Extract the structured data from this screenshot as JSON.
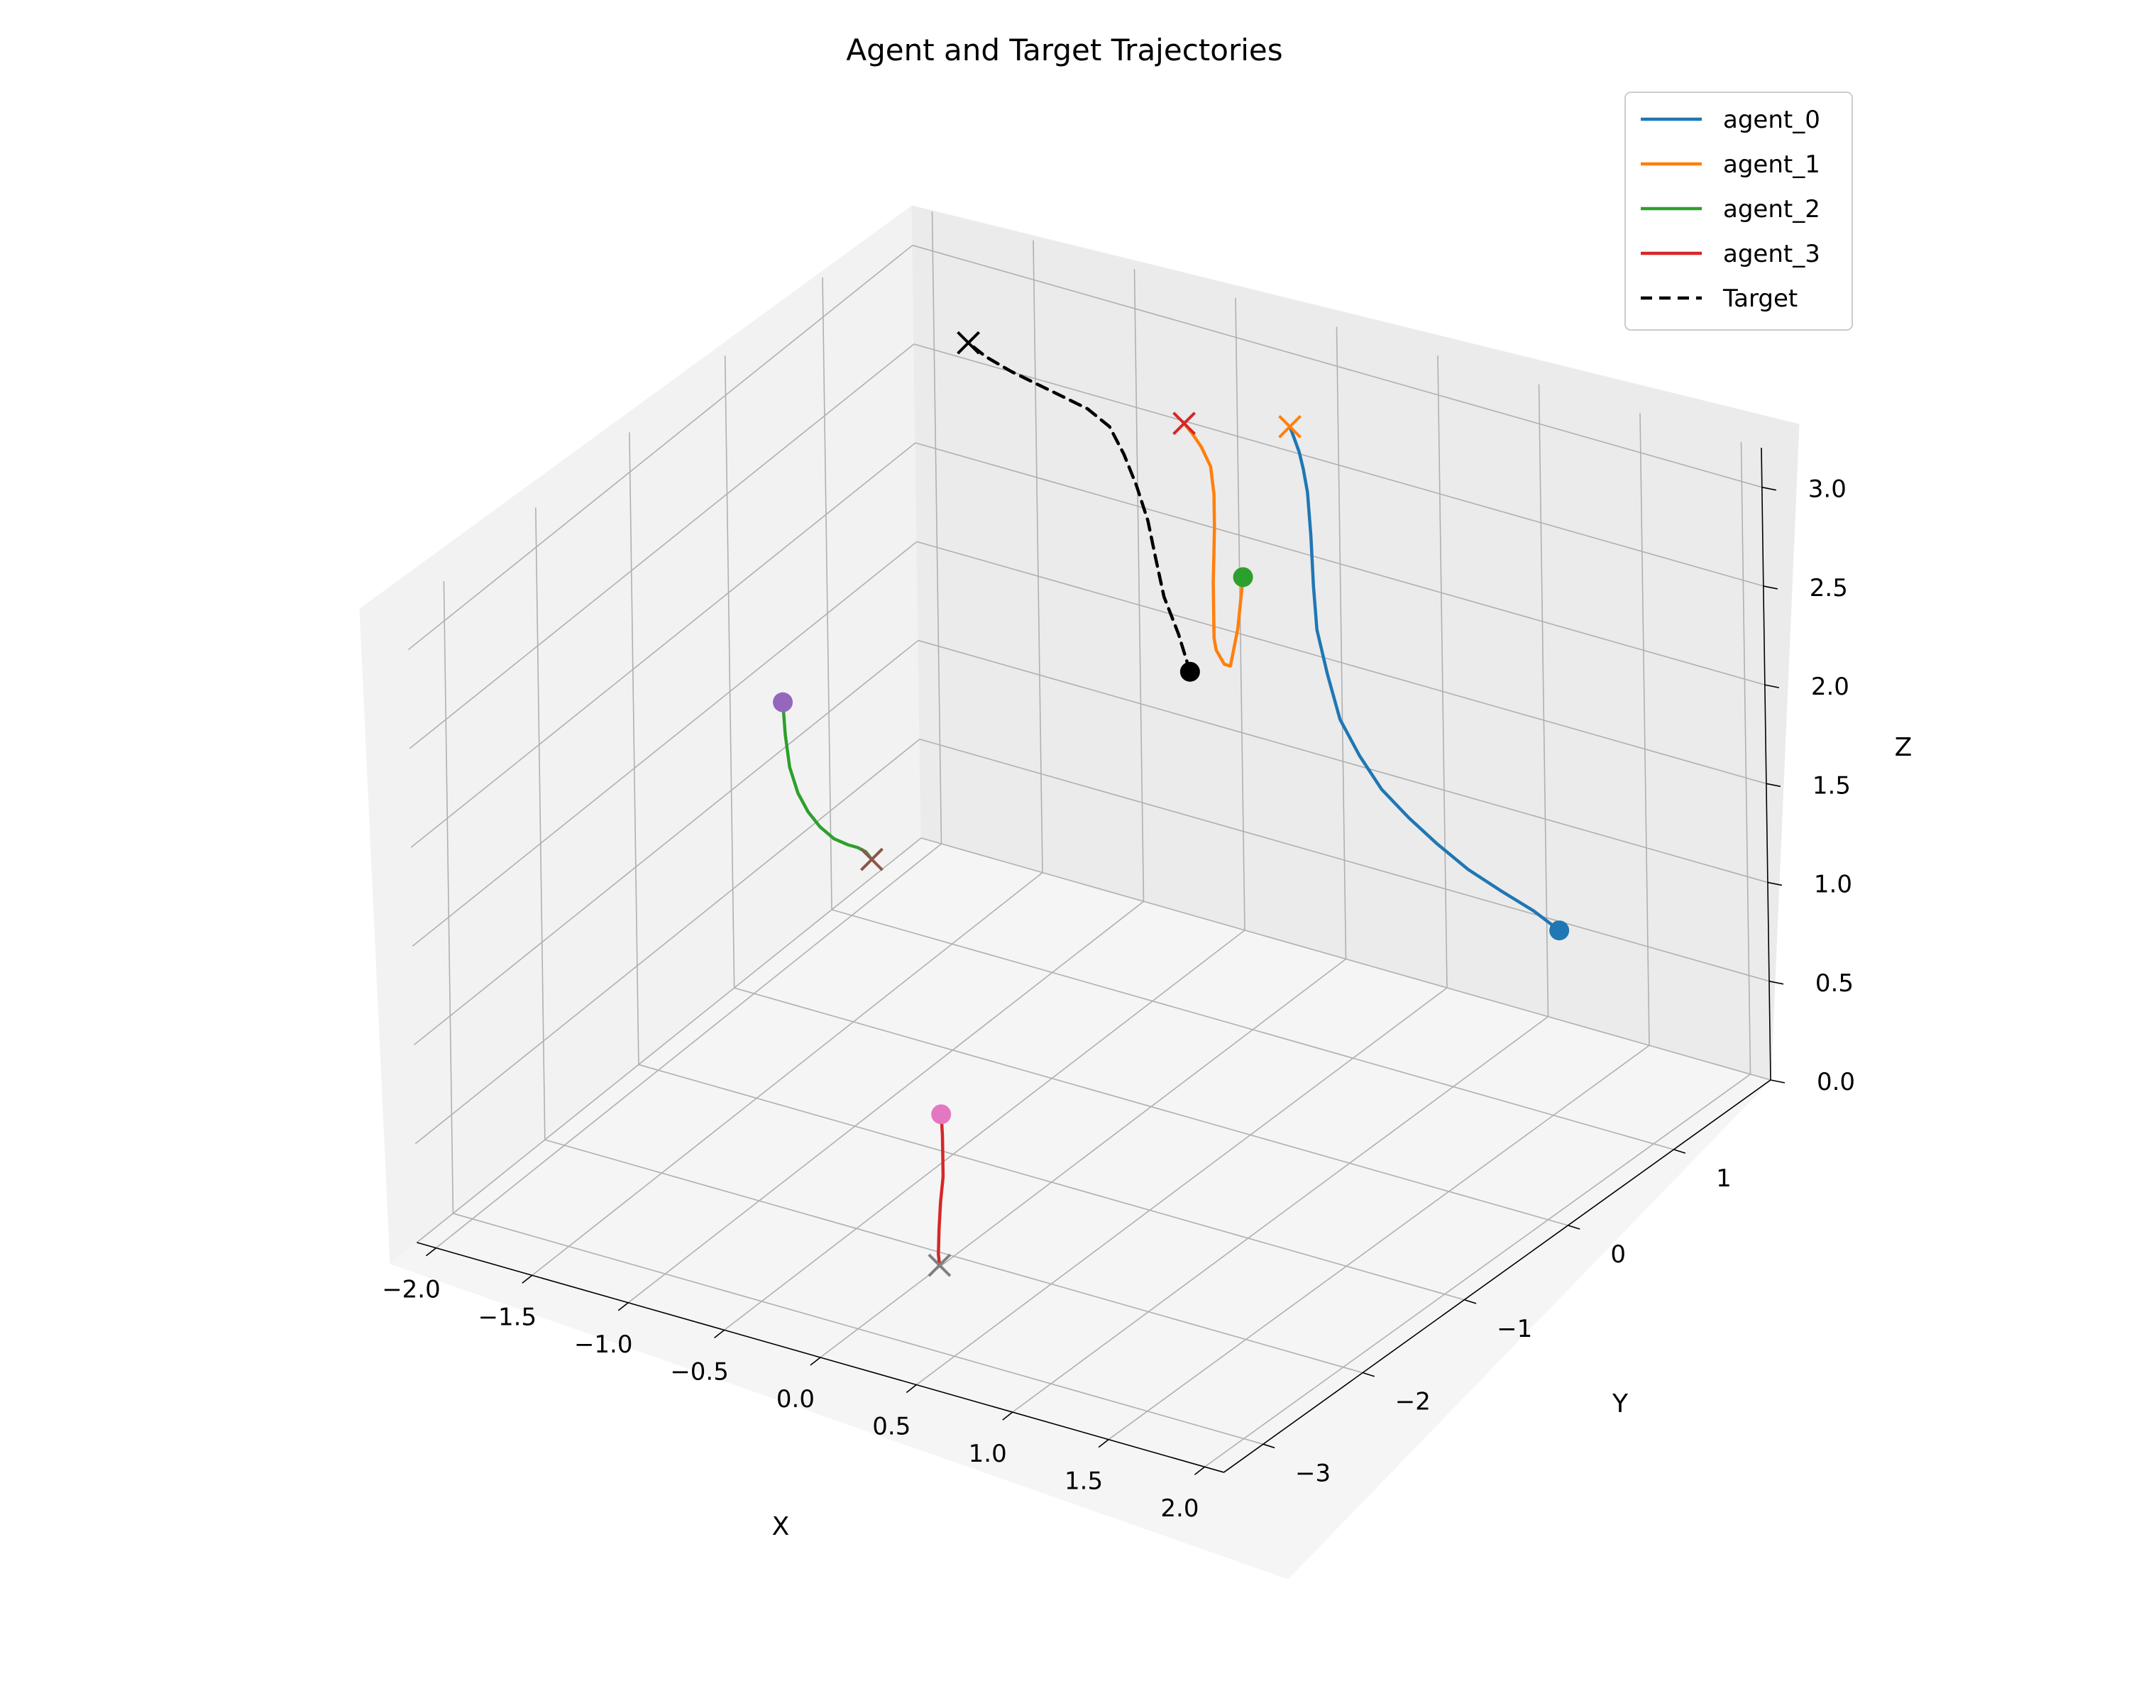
{
  "chart_data": {
    "type": "line",
    "title": "Agent and Target Trajectories",
    "xlabel": "X",
    "ylabel": "Y",
    "zlabel": "Z",
    "xlim": [
      -2.1,
      2.1
    ],
    "ylim": [
      -3.4,
      1.9
    ],
    "zlim": [
      0,
      3.2
    ],
    "xticks": [
      -2.0,
      -1.5,
      -1.0,
      -0.5,
      0.0,
      0.5,
      1.0,
      1.5,
      2.0
    ],
    "yticks": [
      -3,
      -2,
      -1,
      0,
      1
    ],
    "zticks": [
      0.0,
      0.5,
      1.0,
      1.5,
      2.0,
      2.5,
      3.0
    ],
    "xtick_labels": [
      "−2.0",
      "−1.5",
      "−1.0",
      "−0.5",
      "0.0",
      "0.5",
      "1.0",
      "1.5",
      "2.0"
    ],
    "ytick_labels": [
      "−3",
      "−2",
      "−1",
      "0",
      "1"
    ],
    "ztick_labels": [
      "0.0",
      "0.5",
      "1.0",
      "1.5",
      "2.0",
      "2.5",
      "3.0"
    ],
    "legend_position": "top-right",
    "grid": true,
    "series": [
      {
        "name": "agent_0",
        "color": "#1f77b4",
        "style": "solid",
        "start_marker_color": "#1f77b4",
        "end_marker_color": "#ff7f0e",
        "points": [
          [
            1.76,
            0.59,
            1.17
          ],
          [
            1.6,
            0.65,
            1.2
          ],
          [
            1.43,
            0.66,
            1.25
          ],
          [
            1.27,
            0.66,
            1.31
          ],
          [
            1.11,
            0.67,
            1.39
          ],
          [
            0.96,
            0.69,
            1.47
          ],
          [
            0.82,
            0.7,
            1.57
          ],
          [
            0.7,
            0.72,
            1.7
          ],
          [
            0.6,
            0.73,
            1.85
          ],
          [
            0.53,
            0.75,
            2.05
          ],
          [
            0.47,
            0.77,
            2.25
          ],
          [
            0.44,
            0.8,
            2.45
          ],
          [
            0.41,
            0.84,
            2.68
          ],
          [
            0.37,
            0.89,
            2.87
          ],
          [
            0.33,
            0.93,
            2.96
          ],
          [
            0.3,
            0.95,
            3.03
          ],
          [
            0.27,
            0.96,
            3.09
          ],
          [
            0.25,
            0.96,
            3.14
          ]
        ]
      },
      {
        "name": "agent_1",
        "color": "#ff7f0e",
        "style": "solid",
        "start_marker_color": "#2ca02c",
        "end_marker_color": "#d62728",
        "points": [
          [
            0.16,
            0.66,
            2.47
          ],
          [
            0.13,
            0.66,
            2.2
          ],
          [
            0.09,
            0.66,
            2.0
          ],
          [
            0.06,
            0.66,
            2.0
          ],
          [
            0.02,
            0.66,
            2.06
          ],
          [
            0.01,
            0.66,
            2.12
          ],
          [
            0.01,
            0.66,
            2.4
          ],
          [
            0.02,
            0.66,
            2.68
          ],
          [
            0.02,
            0.66,
            2.85
          ],
          [
            0.0,
            0.67,
            2.98
          ],
          [
            -0.05,
            0.68,
            3.06
          ],
          [
            -0.1,
            0.69,
            3.11
          ],
          [
            -0.14,
            0.69,
            3.15
          ]
        ]
      },
      {
        "name": "agent_2",
        "color": "#2ca02c",
        "style": "solid",
        "start_marker_color": "#9467bd",
        "end_marker_color": "#8c564b",
        "points": [
          [
            -1.63,
            -0.41,
            1.74
          ],
          [
            -1.62,
            -0.41,
            1.58
          ],
          [
            -1.6,
            -0.41,
            1.42
          ],
          [
            -1.56,
            -0.41,
            1.3
          ],
          [
            -1.51,
            -0.41,
            1.22
          ],
          [
            -1.45,
            -0.41,
            1.16
          ],
          [
            -1.38,
            -0.41,
            1.12
          ],
          [
            -1.31,
            -0.41,
            1.11
          ],
          [
            -1.26,
            -0.41,
            1.11
          ],
          [
            -1.22,
            -0.41,
            1.1
          ],
          [
            -1.19,
            -0.41,
            1.07
          ]
        ]
      },
      {
        "name": "agent_3",
        "color": "#d62728",
        "style": "solid",
        "start_marker_color": "#e377c2",
        "end_marker_color": "#7f7f7f",
        "points": [
          [
            0.02,
            -2.15,
            0.78
          ],
          [
            0.01,
            -2.12,
            0.66
          ],
          [
            0.0,
            -2.1,
            0.55
          ],
          [
            -0.01,
            -2.08,
            0.43
          ],
          [
            -0.02,
            -2.09,
            0.3
          ],
          [
            -0.02,
            -2.11,
            0.17
          ],
          [
            -0.02,
            -2.12,
            0.05
          ],
          [
            -0.01,
            -2.13,
            0.0
          ]
        ]
      },
      {
        "name": "Target",
        "color": "#000000",
        "style": "dashed",
        "start_marker_color": "#000000",
        "end_marker_color": "#000000",
        "points": [
          [
            -0.01,
            0.46,
            2.02
          ],
          [
            -0.06,
            0.45,
            2.2
          ],
          [
            -0.12,
            0.43,
            2.38
          ],
          [
            -0.15,
            0.41,
            2.58
          ],
          [
            -0.17,
            0.38,
            2.77
          ],
          [
            -0.21,
            0.35,
            2.95
          ],
          [
            -0.26,
            0.33,
            3.1
          ],
          [
            -0.32,
            0.31,
            3.23
          ],
          [
            -0.42,
            0.29,
            3.3
          ],
          [
            -0.6,
            0.27,
            3.35
          ],
          [
            -0.78,
            0.25,
            3.4
          ],
          [
            -0.9,
            0.23,
            3.45
          ],
          [
            -0.98,
            0.22,
            3.5
          ]
        ]
      }
    ]
  }
}
